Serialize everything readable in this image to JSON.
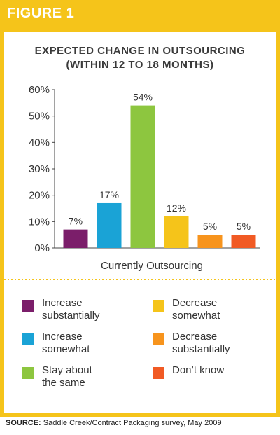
{
  "figure_label": "FIGURE 1",
  "source": {
    "prefix": "SOURCE:",
    "text": "Saddle Creek/Contract Packaging survey, May 2009"
  },
  "colors": {
    "frame": "#F5C41A",
    "divider": "#F5C41A"
  },
  "chart_data": {
    "type": "bar",
    "title_line1": "EXPECTED CHANGE IN OUTSOURCING",
    "title_line2": "(WITHIN 12 TO 18 MONTHS)",
    "xlabel": "Currently Outsourcing",
    "ylim": [
      0,
      60
    ],
    "yticks": [
      "0%",
      "10%",
      "20%",
      "30%",
      "40%",
      "50%",
      "60%"
    ],
    "grid": false,
    "legend_position": "bottom",
    "series": [
      {
        "name": "Increase substantially",
        "value": 7,
        "label": "7%",
        "color": "#7B1E6A"
      },
      {
        "name": "Increase somewhat",
        "value": 17,
        "label": "17%",
        "color": "#1AA3D6"
      },
      {
        "name": "Stay about the same",
        "value": 54,
        "label": "54%",
        "color": "#8DC63F"
      },
      {
        "name": "Decrease somewhat",
        "value": 12,
        "label": "12%",
        "color": "#F5C41A"
      },
      {
        "name": "Decrease substantially",
        "value": 5,
        "label": "5%",
        "color": "#F7941D"
      },
      {
        "name": "Don’t know",
        "value": 5,
        "label": "5%",
        "color": "#F15A24"
      }
    ]
  },
  "legend": [
    {
      "line1": "Increase",
      "line2": "substantially"
    },
    {
      "line1": "Increase",
      "line2": "somewhat"
    },
    {
      "line1": "Stay about",
      "line2": "the same"
    },
    {
      "line1": "Decrease",
      "line2": "somewhat"
    },
    {
      "line1": "Decrease",
      "line2": "substantially"
    },
    {
      "line1": "Don’t know",
      "line2": ""
    }
  ]
}
